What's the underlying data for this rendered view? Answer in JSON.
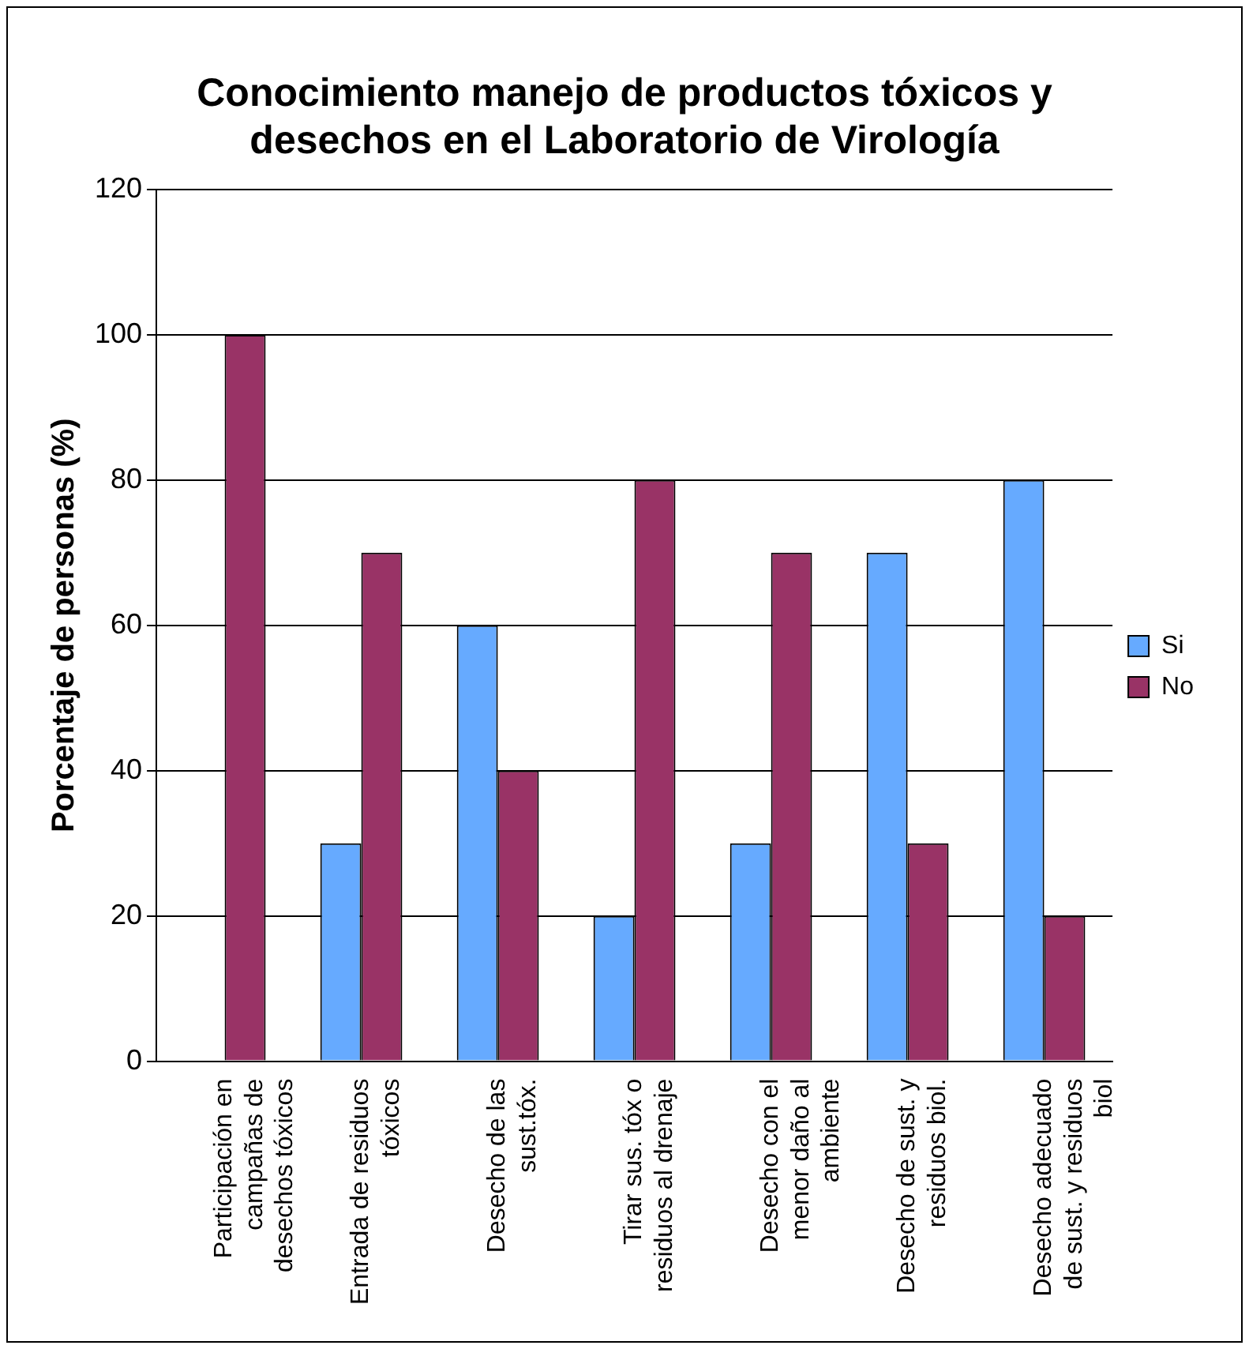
{
  "chart_data": {
    "type": "bar",
    "title": "Conocimiento manejo de productos tóxicos y desechos en el Laboratorio de Virología",
    "ylabel": "Porcentaje de personas (%)",
    "categories": [
      "Participación en campañas de desechos tóxicos",
      "Entrada de residuos tóxicos",
      "Desecho de las sust.tóx.",
      "Tirar sus. tóx o residuos al drenaje",
      "Desecho con el menor daño al ambiente",
      "Desecho de sust. y residuos biol.",
      "Desecho adecuado de sust. y residuos biol"
    ],
    "series": [
      {
        "name": "Si",
        "color": "#66aaff",
        "values": [
          0,
          30,
          60,
          20,
          30,
          70,
          80
        ]
      },
      {
        "name": "No",
        "color": "#993366",
        "values": [
          100,
          70,
          40,
          80,
          70,
          30,
          20
        ]
      }
    ],
    "ylim": [
      0,
      120
    ],
    "yticks": [
      0,
      20,
      40,
      60,
      80,
      100,
      120
    ],
    "grid": "y",
    "legend": "right"
  }
}
